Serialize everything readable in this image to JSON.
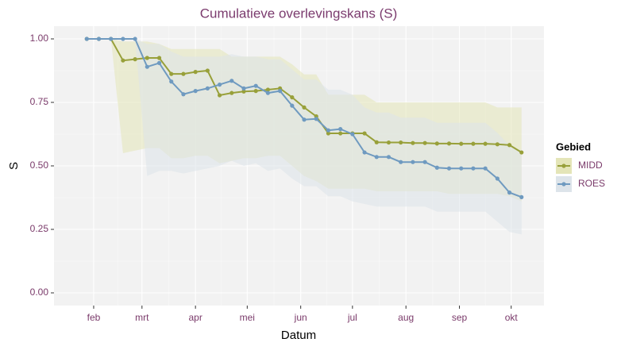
{
  "chart_data": {
    "type": "line",
    "title": "Cumulatieve overlevingskans (S)",
    "x_label": "Datum",
    "y_label": "S",
    "legend_title": "Gebied",
    "legend_position": "right",
    "grid": true,
    "xlim": [
      9,
      293
    ],
    "xticks": [
      {
        "value": 32,
        "label": "feb"
      },
      {
        "value": 60,
        "label": "mrt"
      },
      {
        "value": 91,
        "label": "apr"
      },
      {
        "value": 121,
        "label": "mei"
      },
      {
        "value": 152,
        "label": "jun"
      },
      {
        "value": 182,
        "label": "jul"
      },
      {
        "value": 213,
        "label": "aug"
      },
      {
        "value": 244,
        "label": "sep"
      },
      {
        "value": 274,
        "label": "okt"
      }
    ],
    "ylim": [
      -0.05,
      1.05
    ],
    "yticks": [
      {
        "value": 0,
        "label": "0.00"
      },
      {
        "value": 0.25,
        "label": "0.25"
      },
      {
        "value": 0.5,
        "label": "0.50"
      },
      {
        "value": 0.75,
        "label": "0.75"
      },
      {
        "value": 1,
        "label": "1.00"
      }
    ],
    "x": [
      28,
      35,
      42,
      49,
      56,
      63,
      70,
      77,
      84,
      91,
      98,
      105,
      112,
      119,
      126,
      133,
      140,
      147,
      154,
      161,
      168,
      175,
      182,
      189,
      196,
      203,
      210,
      217,
      224,
      231,
      238,
      245,
      252,
      259,
      266,
      273,
      280
    ],
    "series": [
      {
        "name": "MIDD",
        "color": "#98a03a",
        "band_color": "#e4e5b8",
        "values": [
          1.0,
          1.0,
          1.0,
          0.915,
          0.92,
          0.925,
          0.925,
          0.862,
          0.862,
          0.87,
          0.875,
          0.778,
          0.787,
          0.793,
          0.795,
          0.8,
          0.805,
          0.77,
          0.73,
          0.695,
          0.628,
          0.628,
          0.628,
          0.628,
          0.593,
          0.592,
          0.592,
          0.59,
          0.59,
          0.588,
          0.588,
          0.587,
          0.587,
          0.587,
          0.585,
          0.582,
          0.553
        ],
        "upper": [
          1.0,
          1.0,
          1.0,
          0.99,
          0.99,
          0.99,
          0.98,
          0.96,
          0.96,
          0.96,
          0.96,
          0.96,
          0.93,
          0.93,
          0.93,
          0.93,
          0.93,
          0.9,
          0.86,
          0.86,
          0.78,
          0.78,
          0.78,
          0.78,
          0.75,
          0.75,
          0.75,
          0.75,
          0.75,
          0.75,
          0.75,
          0.75,
          0.75,
          0.75,
          0.73,
          0.73,
          0.73
        ],
        "lower": [
          1.0,
          1.0,
          1.0,
          0.55,
          0.56,
          0.57,
          0.57,
          0.53,
          0.53,
          0.54,
          0.54,
          0.51,
          0.52,
          0.53,
          0.53,
          0.54,
          0.54,
          0.5,
          0.46,
          0.44,
          0.41,
          0.41,
          0.41,
          0.41,
          0.4,
          0.4,
          0.4,
          0.4,
          0.4,
          0.4,
          0.39,
          0.39,
          0.39,
          0.39,
          0.39,
          0.38,
          0.36
        ]
      },
      {
        "name": "ROES",
        "color": "#6f9ac0",
        "band_color": "#dde4ea",
        "values": [
          1.0,
          1.0,
          1.0,
          1.0,
          1.0,
          0.89,
          0.905,
          0.832,
          0.782,
          0.795,
          0.805,
          0.82,
          0.835,
          0.805,
          0.815,
          0.787,
          0.795,
          0.737,
          0.682,
          0.685,
          0.64,
          0.645,
          0.625,
          0.553,
          0.535,
          0.535,
          0.515,
          0.515,
          0.515,
          0.493,
          0.49,
          0.49,
          0.49,
          0.49,
          0.45,
          0.395,
          0.377
        ],
        "upper": [
          1.0,
          1.0,
          1.0,
          1.0,
          1.0,
          0.98,
          0.98,
          0.95,
          0.93,
          0.93,
          0.93,
          0.93,
          0.94,
          0.93,
          0.93,
          0.92,
          0.92,
          0.88,
          0.84,
          0.84,
          0.8,
          0.8,
          0.78,
          0.73,
          0.71,
          0.71,
          0.69,
          0.69,
          0.69,
          0.67,
          0.67,
          0.67,
          0.67,
          0.67,
          0.63,
          0.58,
          0.56
        ],
        "lower": [
          1.0,
          1.0,
          1.0,
          1.0,
          1.0,
          0.46,
          0.48,
          0.48,
          0.47,
          0.48,
          0.49,
          0.5,
          0.52,
          0.5,
          0.51,
          0.48,
          0.49,
          0.45,
          0.42,
          0.42,
          0.38,
          0.38,
          0.36,
          0.35,
          0.34,
          0.34,
          0.34,
          0.34,
          0.34,
          0.32,
          0.32,
          0.32,
          0.32,
          0.32,
          0.28,
          0.24,
          0.23
        ]
      }
    ]
  }
}
